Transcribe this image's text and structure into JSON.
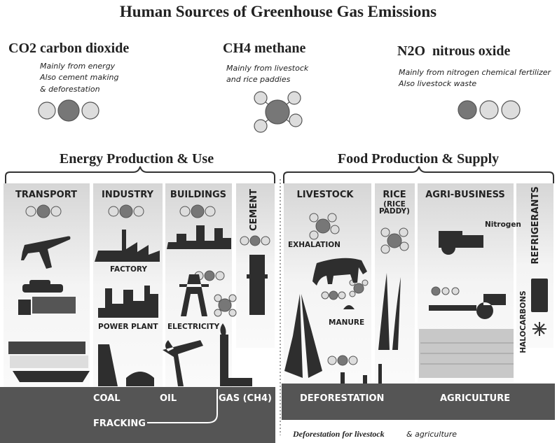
{
  "title": "Human Sources of Greenhouse Gas Emissions",
  "gases": [
    {
      "heading": "CO2 carbon dioxide",
      "description": [
        "Mainly from energy",
        "Also cement making",
        "& deforestation"
      ]
    },
    {
      "heading": "CH4 methane",
      "description": [
        "Mainly from livestock",
        "and rice paddies"
      ]
    },
    {
      "heading": "N2O  nitrous oxide",
      "description": [
        "Mainly from nitrogen chemical fertilizer",
        "Also livestock waste"
      ]
    }
  ],
  "sections": [
    {
      "title": "Energy Production & Use",
      "columns": [
        "TRANSPORT",
        "INDUSTRY",
        "BUILDINGS",
        "CEMENT"
      ]
    },
    {
      "title": "Food Production & Supply",
      "columns": [
        "LIVESTOCK",
        "RICE",
        "AGRI-BUSINESS",
        "REFRIGERANTS"
      ],
      "rice_note": [
        "(RICE",
        "PADDY)"
      ]
    }
  ],
  "labels": [
    "FACTORY",
    "POWER PLANT",
    "ELECTRICITY",
    "EXHALATION",
    "MANURE",
    "Nitrogen",
    "HALOCARBONS"
  ],
  "ground": [
    "COAL",
    "OIL",
    "GAS (CH4)",
    "FRACKING",
    "DEFORESTATION",
    "AGRICULTURE"
  ],
  "footer": [
    "Deforestation for livestock",
    "& agriculture"
  ]
}
